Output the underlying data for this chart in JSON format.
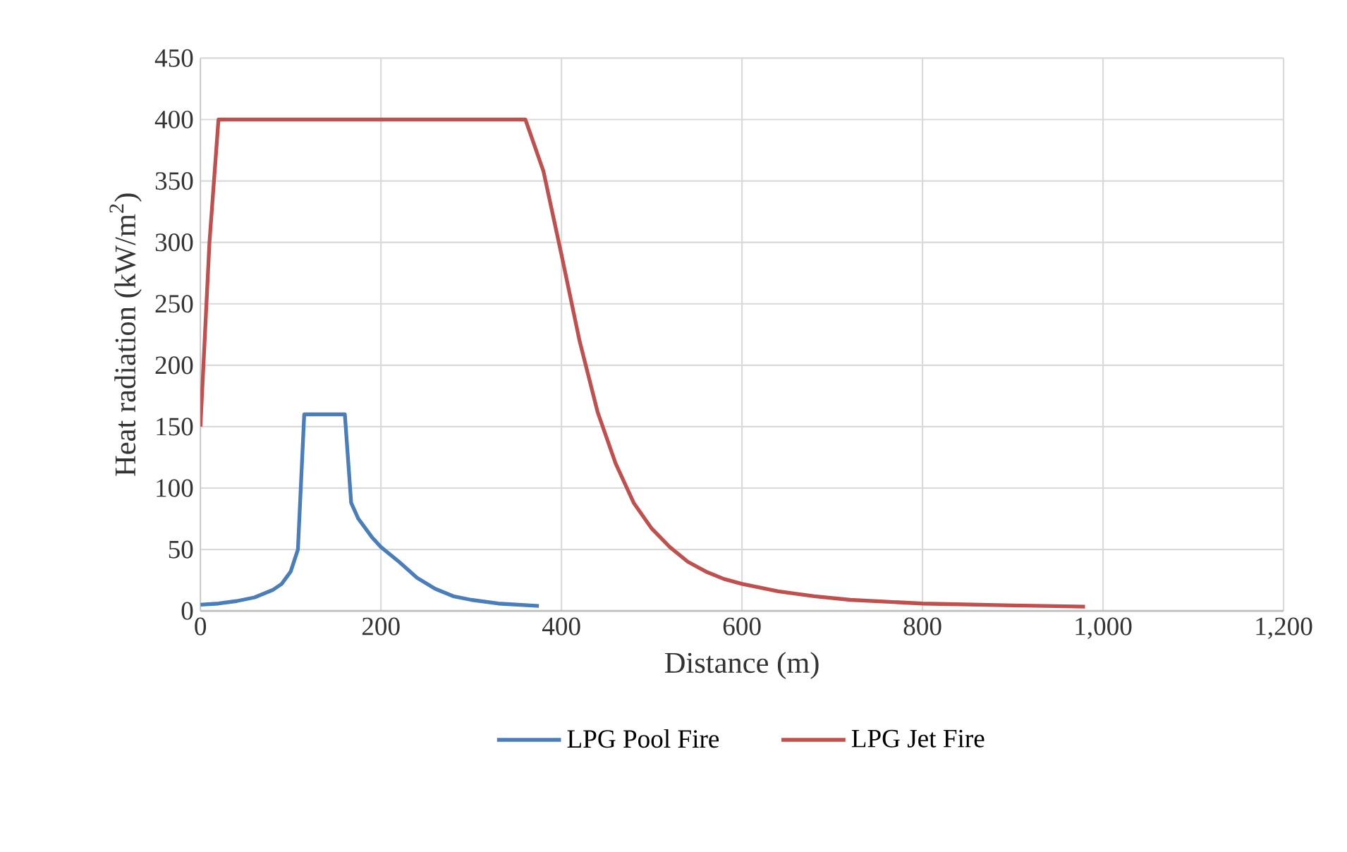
{
  "chart_data": {
    "type": "line",
    "xlabel": "Distance (m)",
    "ylabel": "Heat radiation (kW/m$^{2}$)",
    "xlim": [
      0,
      1200
    ],
    "ylim": [
      0,
      450
    ],
    "xticks": [
      0,
      200,
      400,
      600,
      800,
      {
        "value": 1000,
        "label": "1,000"
      },
      {
        "value": 1200,
        "label": "1,200"
      }
    ],
    "yticks": [
      0,
      50,
      100,
      150,
      200,
      250,
      300,
      350,
      400,
      450
    ],
    "grid": true,
    "legend": "bottom",
    "marker": "none",
    "line_style": "solid",
    "series": [
      {
        "name": "LPG Pool Fire",
        "color": "#4a7ebb",
        "x": [
          0,
          20,
          40,
          60,
          80,
          90,
          100,
          108,
          115,
          160,
          167,
          175,
          190,
          200,
          220,
          240,
          260,
          280,
          300,
          330,
          375
        ],
        "values": [
          5,
          6,
          8,
          11,
          17,
          22,
          32,
          50,
          160,
          160,
          88,
          75,
          60,
          52,
          40,
          27,
          18,
          12,
          9,
          6,
          4
        ]
      },
      {
        "name": "LPG Jet Fire",
        "color": "#c0504d",
        "x": [
          0,
          10,
          20,
          360,
          380,
          400,
          420,
          440,
          460,
          480,
          500,
          520,
          540,
          560,
          580,
          600,
          640,
          680,
          720,
          800,
          900,
          980
        ],
        "values": [
          150,
          300,
          400,
          400,
          358,
          290,
          220,
          162,
          120,
          88,
          67,
          52,
          40,
          32,
          26,
          22,
          16,
          12,
          9,
          6,
          4.5,
          3.5
        ]
      }
    ]
  }
}
